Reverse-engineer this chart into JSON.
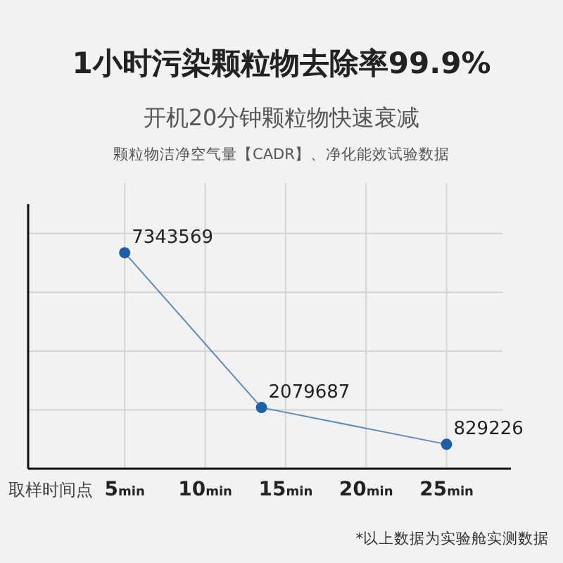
{
  "chart_data": {
    "type": "line",
    "title": "1小时污染颗粒物去除率99.9%",
    "subtitle": "开机20分钟颗粒物快速衰减",
    "annotations": [
      "颗粒物洁净空气量【CADR】、净化能效试验数据",
      "*以上数据为实验舱实测数据"
    ],
    "xlabel": "取样时间点",
    "x": [
      5,
      13.5,
      25
    ],
    "series": [
      {
        "color": "#1f5fa8",
        "values": [
          7343569,
          2079687,
          829226
        ]
      }
    ],
    "xlim": [
      -1,
      29
    ],
    "xticks": [
      {
        "value": 5,
        "label": "5min"
      },
      {
        "value": 10,
        "label": "10min"
      },
      {
        "value": 15,
        "label": "15min"
      },
      {
        "value": 20,
        "label": "20min"
      },
      {
        "value": 25,
        "label": "25min"
      }
    ],
    "ylim": [
      0,
      9000000
    ],
    "yticks": [
      {
        "value": 2000000,
        "label": null
      },
      {
        "value": 4000000,
        "label": null
      },
      {
        "value": 6000000,
        "label": null
      },
      {
        "value": 8000000,
        "label": null
      }
    ],
    "grid": true,
    "marker": "circle",
    "line_style": "solid",
    "data_labels": true,
    "tick_labels": "x"
  }
}
